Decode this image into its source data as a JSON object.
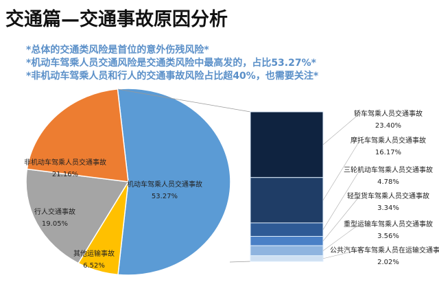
{
  "title": "交通篇—交通事故原因分析",
  "notes": [
    "*总体的交通类风险是首位的意外伤残风险*",
    "*机动车驾乘人员交通风险是交通类风险中最高发的，占比53.27%*",
    "*非机动车驾乘人员和行人的交通事故风险占比超40%，也需要关注*"
  ],
  "chart_data": {
    "type": "pie-of-bar",
    "pie": {
      "labels": [
        "机动车驾乘人员交通事故",
        "其他运输事故",
        "行人交通事故",
        "非机动车驾乘人员交通事故"
      ],
      "values": [
        53.27,
        6.52,
        19.05,
        21.16
      ],
      "value_labels": [
        "53.27%",
        "6.52%",
        "19.05%",
        "21.16%"
      ],
      "colors": [
        "#5b9bd5",
        "#ffc000",
        "#a5a5a5",
        "#ed7d31"
      ]
    },
    "bar": {
      "breakdown_of": "机动车驾乘人员交通事故",
      "labels": [
        "轿车驾乘人员交通事故",
        "摩托车驾乘人员交通事故",
        "三轮机动车驾乘人员交通事故",
        "轻型货车驾乘人员交通事故",
        "重型运输车驾乘人员交通事故",
        "公共汽车客车驾乘人员在运输交通事故"
      ],
      "values": [
        23.4,
        16.17,
        4.78,
        3.34,
        3.56,
        2.02
      ],
      "value_labels": [
        "23.40%",
        "16.17%",
        "4.78%",
        "3.34%",
        "3.56%",
        "2.02%"
      ],
      "colors": [
        "#0f2340",
        "#1f3d66",
        "#2e5a95",
        "#4a80c6",
        "#8fb4df",
        "#cfe0f2"
      ]
    }
  }
}
